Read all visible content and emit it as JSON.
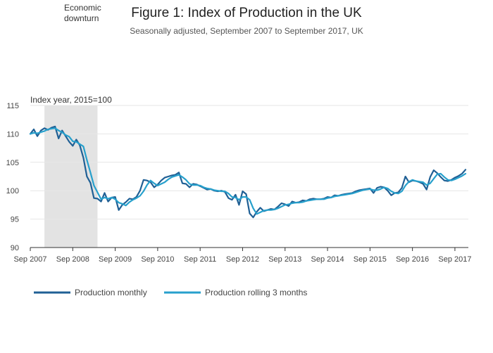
{
  "chart_data": {
    "type": "line",
    "title": "Figure 1: Index of Production in the UK",
    "subtitle": "Seasonally adjusted, September 2007 to September 2017, UK",
    "ylabel": "Index year, 2015=100",
    "xlabel": "",
    "ylim": [
      90,
      115
    ],
    "yticks": [
      90,
      95,
      100,
      105,
      110,
      115
    ],
    "xticks": [
      "Sep 2007",
      "Sep 2008",
      "Sep 2009",
      "Sep 2010",
      "Sep 2011",
      "Sep 2012",
      "Sep 2013",
      "Sep 2014",
      "Sep 2015",
      "Sep 2016",
      "Sep 2017"
    ],
    "x_start": "Sep 2007",
    "x_end": "Sep 2017",
    "grid": true,
    "legend_position": "bottom-left",
    "shaded_region": {
      "label_line1": "Economic",
      "label_line2": "downturn",
      "start_month_index": 4,
      "end_month_index": 19,
      "color": "#e3e3e3"
    },
    "series": [
      {
        "name": "Production monthly",
        "color": "#206095",
        "values": [
          110,
          110.8,
          109.6,
          110.6,
          111,
          110.7,
          111.1,
          111.3,
          109.2,
          110.6,
          109.6,
          108.6,
          107.9,
          109,
          108,
          105.8,
          102.5,
          101.4,
          98.7,
          98.6,
          98.1,
          99.6,
          98.1,
          98.8,
          98.9,
          96.6,
          97.5,
          98,
          98.6,
          98.5,
          98.9,
          100,
          101.9,
          101.8,
          101.5,
          100.6,
          101.1,
          101.8,
          102.3,
          102.5,
          102.7,
          102.8,
          103.2,
          101.3,
          101.2,
          100.6,
          101.2,
          101.1,
          100.8,
          100.5,
          100.2,
          100.3,
          100,
          99.9,
          100,
          99.8,
          98.7,
          98.4,
          99.3,
          97.5,
          99.9,
          99.4,
          96,
          95.3,
          96.3,
          97,
          96.4,
          96.6,
          96.8,
          96.7,
          97.2,
          97.8,
          97.6,
          97.3,
          98.1,
          97.9,
          98,
          98.3,
          98.2,
          98.5,
          98.6,
          98.5,
          98.5,
          98.6,
          98.9,
          98.8,
          99.2,
          99.1,
          99.3,
          99.4,
          99.5,
          99.6,
          99.9,
          100.1,
          100.2,
          100.3,
          100.4,
          99.6,
          100.5,
          100.7,
          100.6,
          100,
          99.2,
          99.6,
          99.7,
          100.5,
          102.5,
          101.5,
          101.8,
          101.7,
          101.5,
          101.2,
          100.2,
          102.4,
          103.6,
          103.1,
          102.4,
          101.8,
          101.7,
          101.9,
          102.3,
          102.6,
          103,
          103.7
        ]
      },
      {
        "name": "Production rolling 3 months",
        "color": "#27a0cc",
        "values": [
          110,
          110.2,
          110.1,
          110.3,
          110.5,
          110.8,
          110.9,
          111,
          110.6,
          110.3,
          109.8,
          109.5,
          108.7,
          108.6,
          108.2,
          107.8,
          105.4,
          103.2,
          100.9,
          99.7,
          98.5,
          98.8,
          98.6,
          98.8,
          98.5,
          97.9,
          97.7,
          97.4,
          98,
          98.4,
          98.7,
          99.1,
          99.9,
          101,
          101.8,
          101.3,
          100.9,
          101.2,
          101.5,
          102,
          102.4,
          102.6,
          102.8,
          102.4,
          101.9,
          101.2,
          101,
          101,
          100.9,
          100.6,
          100.4,
          100.3,
          100.1,
          100,
          99.9,
          99.9,
          99.5,
          98.9,
          98.8,
          98.4,
          98.9,
          98.9,
          98.4,
          96.9,
          95.9,
          96.2,
          96.5,
          96.6,
          96.6,
          96.7,
          96.9,
          97.2,
          97.5,
          97.6,
          97.8,
          97.9,
          97.9,
          98,
          98.2,
          98.3,
          98.4,
          98.5,
          98.5,
          98.5,
          98.7,
          98.8,
          99,
          99.1,
          99.2,
          99.3,
          99.4,
          99.5,
          99.7,
          99.9,
          100.1,
          100.2,
          100.3,
          100.1,
          100.1,
          100.3,
          100.6,
          100.4,
          99.9,
          99.6,
          99.5,
          99.9,
          100.9,
          101.6,
          101.9,
          101.7,
          101.6,
          101.5,
          101,
          101.3,
          102.1,
          102.9,
          103,
          102.4,
          101.9,
          101.8,
          102,
          102.3,
          102.6,
          103
        ]
      }
    ]
  }
}
